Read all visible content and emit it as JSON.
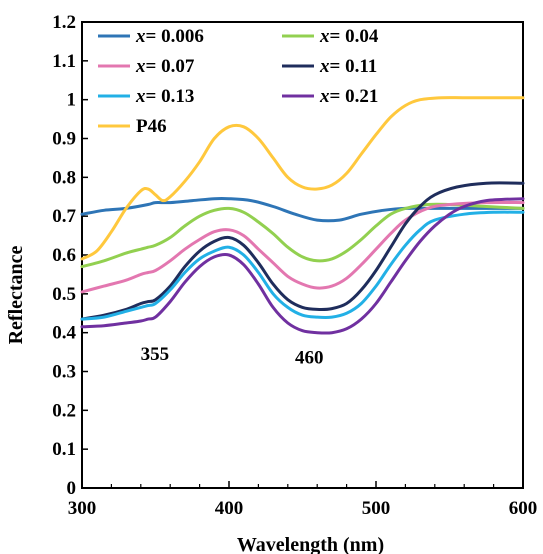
{
  "chart_data": {
    "type": "line",
    "title": "",
    "xlabel": "Wavelength (nm)",
    "ylabel": "Reflectance",
    "xlim": [
      300,
      600
    ],
    "ylim": [
      0,
      1.2
    ],
    "x_ticks": [
      300,
      400,
      500,
      600
    ],
    "y_ticks": [
      0,
      0.1,
      0.2,
      0.3,
      0.4,
      0.5,
      0.6,
      0.7,
      0.8,
      0.9,
      1,
      1.1,
      1.2
    ],
    "x_tick_labels": [
      "300",
      "400",
      "500",
      "600"
    ],
    "y_tick_labels": [
      "0",
      "0.1",
      "0.2",
      "0.3",
      "0.4",
      "0.5",
      "0.6",
      "0.7",
      "0.8",
      "0.9",
      "1",
      "1.1",
      "1.2"
    ],
    "grid": false,
    "legend_position": "top-left",
    "annotations": [
      {
        "text": "355",
        "x": 355,
        "y": 0.33
      },
      {
        "text": "460",
        "x": 460,
        "y": 0.32
      }
    ],
    "series": [
      {
        "name": "x= 0.006",
        "legend_prefix": "x",
        "legend_value": "= 0.006",
        "color": "#2e75b6",
        "points": [
          [
            300,
            0.705
          ],
          [
            315,
            0.715
          ],
          [
            330,
            0.72
          ],
          [
            345,
            0.73
          ],
          [
            350,
            0.735
          ],
          [
            360,
            0.735
          ],
          [
            375,
            0.74
          ],
          [
            390,
            0.745
          ],
          [
            400,
            0.745
          ],
          [
            415,
            0.74
          ],
          [
            430,
            0.725
          ],
          [
            445,
            0.705
          ],
          [
            460,
            0.69
          ],
          [
            475,
            0.69
          ],
          [
            490,
            0.705
          ],
          [
            505,
            0.715
          ],
          [
            520,
            0.72
          ],
          [
            540,
            0.72
          ],
          [
            560,
            0.72
          ],
          [
            580,
            0.72
          ],
          [
            600,
            0.72
          ]
        ]
      },
      {
        "name": "x= 0.04",
        "legend_prefix": "x",
        "legend_value": "= 0.04",
        "color": "#92d050",
        "points": [
          [
            300,
            0.57
          ],
          [
            315,
            0.585
          ],
          [
            330,
            0.605
          ],
          [
            340,
            0.615
          ],
          [
            345,
            0.62
          ],
          [
            350,
            0.625
          ],
          [
            360,
            0.645
          ],
          [
            370,
            0.675
          ],
          [
            380,
            0.7
          ],
          [
            390,
            0.715
          ],
          [
            400,
            0.72
          ],
          [
            410,
            0.71
          ],
          [
            420,
            0.685
          ],
          [
            430,
            0.655
          ],
          [
            440,
            0.62
          ],
          [
            450,
            0.595
          ],
          [
            460,
            0.585
          ],
          [
            470,
            0.59
          ],
          [
            480,
            0.61
          ],
          [
            490,
            0.64
          ],
          [
            500,
            0.675
          ],
          [
            510,
            0.705
          ],
          [
            520,
            0.72
          ],
          [
            535,
            0.73
          ],
          [
            550,
            0.73
          ],
          [
            575,
            0.725
          ],
          [
            600,
            0.72
          ]
        ]
      },
      {
        "name": "x= 0.07",
        "legend_prefix": "x",
        "legend_value": "= 0.07",
        "color": "#e377b0",
        "points": [
          [
            300,
            0.505
          ],
          [
            315,
            0.52
          ],
          [
            330,
            0.535
          ],
          [
            340,
            0.55
          ],
          [
            345,
            0.555
          ],
          [
            350,
            0.56
          ],
          [
            360,
            0.585
          ],
          [
            370,
            0.615
          ],
          [
            380,
            0.64
          ],
          [
            390,
            0.66
          ],
          [
            400,
            0.665
          ],
          [
            410,
            0.65
          ],
          [
            420,
            0.615
          ],
          [
            430,
            0.58
          ],
          [
            440,
            0.545
          ],
          [
            450,
            0.525
          ],
          [
            460,
            0.515
          ],
          [
            470,
            0.52
          ],
          [
            480,
            0.54
          ],
          [
            490,
            0.575
          ],
          [
            500,
            0.615
          ],
          [
            510,
            0.655
          ],
          [
            520,
            0.69
          ],
          [
            535,
            0.72
          ],
          [
            550,
            0.73
          ],
          [
            575,
            0.735
          ],
          [
            600,
            0.735
          ]
        ]
      },
      {
        "name": "x= 0.11",
        "legend_prefix": "x",
        "legend_value": "= 0.11",
        "color": "#1f2d5c",
        "points": [
          [
            300,
            0.435
          ],
          [
            315,
            0.445
          ],
          [
            330,
            0.46
          ],
          [
            340,
            0.475
          ],
          [
            345,
            0.48
          ],
          [
            350,
            0.485
          ],
          [
            360,
            0.52
          ],
          [
            370,
            0.57
          ],
          [
            380,
            0.61
          ],
          [
            390,
            0.635
          ],
          [
            400,
            0.645
          ],
          [
            410,
            0.625
          ],
          [
            420,
            0.58
          ],
          [
            430,
            0.525
          ],
          [
            440,
            0.485
          ],
          [
            450,
            0.465
          ],
          [
            460,
            0.46
          ],
          [
            470,
            0.462
          ],
          [
            480,
            0.475
          ],
          [
            490,
            0.51
          ],
          [
            500,
            0.56
          ],
          [
            510,
            0.62
          ],
          [
            520,
            0.68
          ],
          [
            530,
            0.725
          ],
          [
            540,
            0.755
          ],
          [
            555,
            0.775
          ],
          [
            575,
            0.785
          ],
          [
            600,
            0.785
          ]
        ]
      },
      {
        "name": "x= 0.13",
        "legend_prefix": "x",
        "legend_value": "= 0.13",
        "color": "#22b0e6",
        "points": [
          [
            300,
            0.435
          ],
          [
            315,
            0.44
          ],
          [
            330,
            0.455
          ],
          [
            340,
            0.465
          ],
          [
            345,
            0.47
          ],
          [
            350,
            0.475
          ],
          [
            360,
            0.51
          ],
          [
            370,
            0.555
          ],
          [
            380,
            0.59
          ],
          [
            390,
            0.61
          ],
          [
            400,
            0.62
          ],
          [
            410,
            0.6
          ],
          [
            420,
            0.555
          ],
          [
            430,
            0.5
          ],
          [
            440,
            0.465
          ],
          [
            450,
            0.445
          ],
          [
            460,
            0.44
          ],
          [
            470,
            0.44
          ],
          [
            480,
            0.45
          ],
          [
            490,
            0.475
          ],
          [
            500,
            0.52
          ],
          [
            510,
            0.575
          ],
          [
            520,
            0.625
          ],
          [
            530,
            0.665
          ],
          [
            540,
            0.69
          ],
          [
            560,
            0.705
          ],
          [
            580,
            0.71
          ],
          [
            600,
            0.71
          ]
        ]
      },
      {
        "name": "x= 0.21",
        "legend_prefix": "x",
        "legend_value": "= 0.21",
        "color": "#7030a0",
        "points": [
          [
            300,
            0.415
          ],
          [
            315,
            0.418
          ],
          [
            330,
            0.425
          ],
          [
            340,
            0.43
          ],
          [
            345,
            0.435
          ],
          [
            350,
            0.44
          ],
          [
            360,
            0.48
          ],
          [
            370,
            0.53
          ],
          [
            380,
            0.57
          ],
          [
            390,
            0.595
          ],
          [
            400,
            0.6
          ],
          [
            410,
            0.575
          ],
          [
            420,
            0.525
          ],
          [
            430,
            0.465
          ],
          [
            440,
            0.425
          ],
          [
            450,
            0.405
          ],
          [
            460,
            0.4
          ],
          [
            470,
            0.4
          ],
          [
            480,
            0.41
          ],
          [
            490,
            0.435
          ],
          [
            500,
            0.475
          ],
          [
            510,
            0.53
          ],
          [
            520,
            0.585
          ],
          [
            530,
            0.635
          ],
          [
            540,
            0.675
          ],
          [
            550,
            0.705
          ],
          [
            560,
            0.725
          ],
          [
            575,
            0.74
          ],
          [
            600,
            0.745
          ]
        ]
      },
      {
        "name": "P46",
        "legend_prefix": "",
        "legend_value": "P46",
        "color": "#ffc83d",
        "points": [
          [
            300,
            0.59
          ],
          [
            310,
            0.61
          ],
          [
            320,
            0.66
          ],
          [
            330,
            0.72
          ],
          [
            340,
            0.765
          ],
          [
            345,
            0.77
          ],
          [
            350,
            0.755
          ],
          [
            355,
            0.74
          ],
          [
            360,
            0.75
          ],
          [
            370,
            0.79
          ],
          [
            380,
            0.84
          ],
          [
            390,
            0.9
          ],
          [
            400,
            0.93
          ],
          [
            410,
            0.93
          ],
          [
            420,
            0.9
          ],
          [
            430,
            0.85
          ],
          [
            440,
            0.8
          ],
          [
            450,
            0.775
          ],
          [
            460,
            0.77
          ],
          [
            470,
            0.78
          ],
          [
            480,
            0.81
          ],
          [
            490,
            0.86
          ],
          [
            500,
            0.91
          ],
          [
            510,
            0.955
          ],
          [
            520,
            0.985
          ],
          [
            530,
            1.0
          ],
          [
            545,
            1.005
          ],
          [
            560,
            1.005
          ],
          [
            580,
            1.005
          ],
          [
            600,
            1.005
          ]
        ]
      }
    ]
  }
}
